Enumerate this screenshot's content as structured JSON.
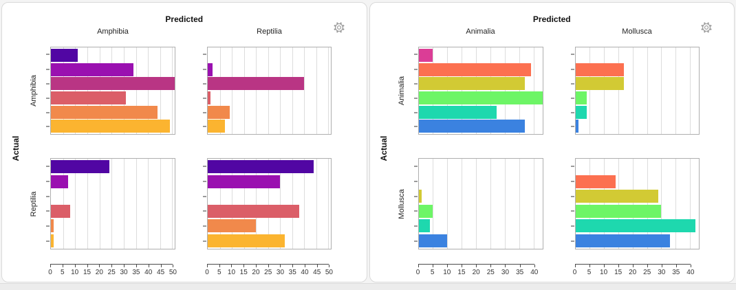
{
  "icons": {
    "settings": "gear"
  },
  "colors": {
    "card_border": "#d9d9d9",
    "plot_border": "#aeaeae",
    "grid_line": "#dcdcdc",
    "axis_line": "#4a4a4a",
    "y_tick": "#9a9a9a",
    "scroll_track": "#ececec"
  },
  "chart_data": [
    {
      "type": "bar",
      "orientation": "horizontal",
      "facet_title_top": "Predicted",
      "facet_title_left": "Actual",
      "columns": [
        "Amphibia",
        "Reptilia"
      ],
      "rows": [
        "Amphibia",
        "Reptilia"
      ],
      "x_axis": {
        "min": 0,
        "max": 51,
        "tick_step": 5,
        "ticks": [
          0,
          5,
          10,
          15,
          20,
          25,
          30,
          35,
          40,
          45,
          50
        ]
      },
      "grid": true,
      "bar_colors": [
        "#5106A3",
        "#9A10B0",
        "#B93584",
        "#DB5E68",
        "#F1894B",
        "#FBB430"
      ],
      "cells": [
        {
          "row": "Amphibia",
          "column": "Amphibia",
          "values": [
            11,
            34,
            51,
            31,
            44,
            49
          ]
        },
        {
          "row": "Amphibia",
          "column": "Reptilia",
          "values": [
            0,
            2,
            40,
            1,
            9,
            7
          ]
        },
        {
          "row": "Reptilia",
          "column": "Amphibia",
          "values": [
            24,
            7,
            0,
            8,
            1,
            1
          ]
        },
        {
          "row": "Reptilia",
          "column": "Reptilia",
          "values": [
            44,
            30,
            0,
            38,
            20,
            32
          ]
        }
      ]
    },
    {
      "type": "bar",
      "orientation": "horizontal",
      "facet_title_top": "Predicted",
      "facet_title_left": "Actual",
      "columns": [
        "Animalia",
        "Mollusca"
      ],
      "rows": [
        "Animalia",
        "Mollusca"
      ],
      "x_axis": {
        "min": 0,
        "max": 43,
        "tick_step": 5,
        "ticks": [
          0,
          5,
          10,
          15,
          20,
          25,
          30,
          35,
          40
        ]
      },
      "grid": true,
      "bar_colors": [
        "#DB3D96",
        "#FC7050",
        "#D2CA34",
        "#6DF566",
        "#1ED8AE",
        "#3B82E0"
      ],
      "cells": [
        {
          "row": "Animalia",
          "column": "Animalia",
          "values": [
            5,
            39,
            37,
            43,
            27,
            37
          ]
        },
        {
          "row": "Animalia",
          "column": "Mollusca",
          "values": [
            0,
            17,
            17,
            4,
            4,
            1
          ]
        },
        {
          "row": "Mollusca",
          "column": "Animalia",
          "values": [
            0,
            0,
            1,
            5,
            4,
            10
          ]
        },
        {
          "row": "Mollusca",
          "column": "Mollusca",
          "values": [
            0,
            14,
            29,
            30,
            42,
            33
          ]
        }
      ]
    }
  ]
}
